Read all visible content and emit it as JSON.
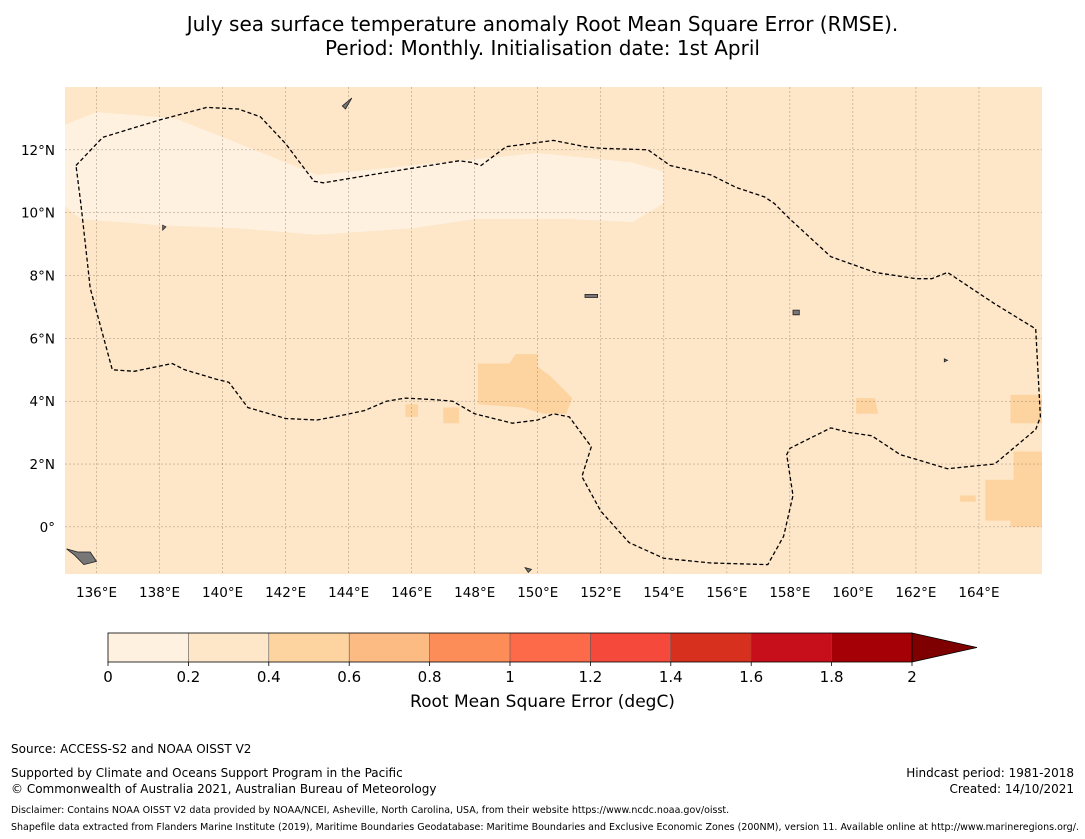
{
  "title": {
    "line1": "July sea surface temperature anomaly Root Mean Square Error (RMSE).",
    "line2": "Period: Monthly. Initialisation date: 1st April"
  },
  "map": {
    "lon_range": [
      135,
      166
    ],
    "lat_range": [
      -1.5,
      14
    ],
    "lon_ticks": [
      "136°E",
      "138°E",
      "140°E",
      "142°E",
      "144°E",
      "146°E",
      "148°E",
      "150°E",
      "152°E",
      "154°E",
      "156°E",
      "158°E",
      "160°E",
      "162°E",
      "164°E"
    ],
    "lon_tick_values": [
      136,
      138,
      140,
      142,
      144,
      146,
      148,
      150,
      152,
      154,
      156,
      158,
      160,
      162,
      164
    ],
    "lat_ticks": [
      "12°N",
      "10°N",
      "8°N",
      "6°N",
      "4°N",
      "2°N",
      "0°"
    ],
    "lat_tick_values": [
      12,
      10,
      8,
      6,
      4,
      2,
      0
    ],
    "grid": true,
    "background_color": "#fee6c9",
    "low_error_color": "#fff1e0",
    "higher_error_color": "#fdd4a0",
    "low_error_band": [
      [
        [
          135,
          12.8
        ],
        [
          136,
          13.2
        ],
        [
          138.5,
          13.0
        ],
        [
          141,
          12.0
        ],
        [
          143,
          11.2
        ],
        [
          146,
          11.5
        ],
        [
          148,
          11.7
        ],
        [
          150,
          11.9
        ],
        [
          153,
          11.6
        ],
        [
          154,
          11.3
        ],
        [
          154,
          10.3
        ],
        [
          153,
          9.7
        ],
        [
          151,
          9.8
        ],
        [
          148,
          9.8
        ],
        [
          146,
          9.5
        ],
        [
          143,
          9.3
        ],
        [
          140.5,
          9.5
        ],
        [
          138,
          9.6
        ],
        [
          135.5,
          9.8
        ],
        [
          135,
          10.2
        ]
      ]
    ],
    "higher_error_patches": [
      [
        [
          148.1,
          5.2
        ],
        [
          149.1,
          5.2
        ],
        [
          149.3,
          5.5
        ],
        [
          150,
          5.5
        ],
        [
          150,
          5.1
        ],
        [
          150.4,
          4.8
        ],
        [
          151.1,
          4.1
        ],
        [
          150.9,
          3.6
        ],
        [
          150.2,
          3.6
        ],
        [
          149.5,
          3.8
        ],
        [
          148.1,
          3.9
        ]
      ],
      [
        [
          145.8,
          3.9
        ],
        [
          146.2,
          3.9
        ],
        [
          146.2,
          3.5
        ],
        [
          145.8,
          3.5
        ]
      ],
      [
        [
          147.0,
          3.8
        ],
        [
          147.5,
          3.8
        ],
        [
          147.5,
          3.3
        ],
        [
          147.0,
          3.3
        ]
      ],
      [
        [
          160.1,
          4.1
        ],
        [
          160.7,
          4.1
        ],
        [
          160.8,
          3.6
        ],
        [
          160.1,
          3.6
        ]
      ],
      [
        [
          165.0,
          4.2
        ],
        [
          166,
          4.2
        ],
        [
          166,
          3.3
        ],
        [
          165.0,
          3.3
        ]
      ],
      [
        [
          163.4,
          1.0
        ],
        [
          163.9,
          1.0
        ],
        [
          163.9,
          0.8
        ],
        [
          163.4,
          0.8
        ]
      ],
      [
        [
          164.2,
          1.5
        ],
        [
          165.1,
          1.5
        ],
        [
          165.1,
          2.4
        ],
        [
          165.9,
          2.4
        ],
        [
          166,
          2.4
        ],
        [
          166,
          0
        ],
        [
          165.0,
          0
        ],
        [
          165.0,
          0.2
        ],
        [
          164.2,
          0.2
        ]
      ]
    ],
    "eez_boundary_lonlat": [
      [
        135.35,
        11.5
      ],
      [
        136.2,
        12.4
      ],
      [
        138,
        12.95
      ],
      [
        139.5,
        13.35
      ],
      [
        140.5,
        13.3
      ],
      [
        141.2,
        13.05
      ],
      [
        142,
        12.2
      ],
      [
        142.9,
        11.0
      ],
      [
        143.2,
        10.95
      ],
      [
        145.3,
        11.3
      ],
      [
        147.5,
        11.65
      ],
      [
        147.9,
        11.6
      ],
      [
        148.2,
        11.5
      ],
      [
        149,
        12.1
      ],
      [
        150.5,
        12.3
      ],
      [
        151.5,
        12.1
      ],
      [
        152,
        12.05
      ],
      [
        153.5,
        12
      ],
      [
        154.2,
        11.5
      ],
      [
        155.5,
        11.2
      ],
      [
        156.3,
        10.8
      ],
      [
        157.2,
        10.5
      ],
      [
        157.5,
        10.3
      ],
      [
        158,
        9.8
      ],
      [
        159.3,
        8.6
      ],
      [
        160.7,
        8.1
      ],
      [
        162,
        7.9
      ],
      [
        162.5,
        7.9
      ],
      [
        163,
        8.1
      ],
      [
        164.5,
        7.1
      ],
      [
        165.8,
        6.3
      ],
      [
        165.95,
        3.5
      ],
      [
        165.8,
        3.1
      ],
      [
        164.5,
        2.0
      ],
      [
        163,
        1.85
      ],
      [
        161.5,
        2.3
      ],
      [
        160.6,
        2.9
      ],
      [
        159.9,
        3.0
      ],
      [
        159.3,
        3.15
      ],
      [
        158,
        2.5
      ],
      [
        157.9,
        2.3
      ],
      [
        158.1,
        1.0
      ],
      [
        157.8,
        -0.3
      ],
      [
        157.3,
        -1.2
      ],
      [
        155.5,
        -1.15
      ],
      [
        154,
        -1.0
      ],
      [
        152.9,
        -0.5
      ],
      [
        152,
        0.5
      ],
      [
        151.4,
        1.6
      ],
      [
        151.7,
        2.55
      ],
      [
        151,
        3.5
      ],
      [
        150.5,
        3.6
      ],
      [
        150,
        3.4
      ],
      [
        149.2,
        3.3
      ],
      [
        148,
        3.6
      ],
      [
        147.3,
        4.0
      ],
      [
        146.7,
        4.05
      ],
      [
        145.8,
        4.1
      ],
      [
        145.2,
        4.0
      ],
      [
        144.5,
        3.7
      ],
      [
        143.8,
        3.55
      ],
      [
        143,
        3.4
      ],
      [
        142,
        3.45
      ],
      [
        140.8,
        3.8
      ],
      [
        140.2,
        4.6
      ],
      [
        139.8,
        4.7
      ],
      [
        138.8,
        5.0
      ],
      [
        138.4,
        5.2
      ],
      [
        137.2,
        4.95
      ],
      [
        136.5,
        5.0
      ],
      [
        135.8,
        7.6
      ],
      [
        135.7,
        8.5
      ],
      [
        135.5,
        10.3
      ],
      [
        135.35,
        11.5
      ]
    ],
    "islands_lonlat": [
      [
        [
          143.8,
          13.4
        ],
        [
          144.1,
          13.65
        ],
        [
          143.9,
          13.3
        ]
      ],
      [
        [
          138.1,
          9.6
        ],
        [
          138.2,
          9.55
        ],
        [
          138.1,
          9.45
        ]
      ],
      [
        [
          151.5,
          7.4
        ],
        [
          151.9,
          7.4
        ],
        [
          151.9,
          7.3
        ],
        [
          151.5,
          7.3
        ]
      ],
      [
        [
          158.1,
          6.9
        ],
        [
          158.3,
          6.9
        ],
        [
          158.3,
          6.75
        ],
        [
          158.1,
          6.75
        ]
      ],
      [
        [
          162.9,
          5.35
        ],
        [
          163.0,
          5.3
        ],
        [
          162.9,
          5.25
        ]
      ],
      [
        [
          135.05,
          -0.7
        ],
        [
          135.4,
          -0.8
        ],
        [
          135.8,
          -0.8
        ],
        [
          136.0,
          -1.1
        ],
        [
          135.6,
          -1.2
        ],
        [
          135.3,
          -0.9
        ]
      ],
      [
        [
          149.6,
          -1.3
        ],
        [
          149.8,
          -1.35
        ],
        [
          149.7,
          -1.45
        ]
      ]
    ]
  },
  "colorbar": {
    "ticks": [
      "0",
      "0.2",
      "0.4",
      "0.6",
      "0.8",
      "1",
      "1.2",
      "1.4",
      "1.6",
      "1.8",
      "2"
    ],
    "colors": [
      "#fff1e0",
      "#fee6c9",
      "#fdd4a0",
      "#fdbb84",
      "#fc8d59",
      "#fc6a4a",
      "#f5493b",
      "#d7301f",
      "#c70f1b",
      "#a50006"
    ],
    "extend_color": "#7f0000",
    "label": "Root Mean Square Error (degC)"
  },
  "footer": {
    "source": "Source: ACCESS-S2 and NOAA OISST V2",
    "supported": "Supported by Climate and Oceans Support Program in the Pacific",
    "copyright": "© Commonwealth of Australia 2021, Australian Bureau of Meteorology",
    "hindcast": "Hindcast period: 1981-2018",
    "created": "Created: 14/10/2021",
    "disclaimer": "Disclaimer: Contains NOAA OISST V2 data provided by NOAA/NCEI, Asheville, North Carolina, USA, from their website https://www.ncdc.noaa.gov/oisst.",
    "shapefile": "Shapefile data extracted from Flanders Marine Institute (2019), Maritime Boundaries Geodatabase: Maritime Boundaries and Exclusive Economic Zones (200NM), version 11. Available online at http://www.marineregions.org/."
  }
}
